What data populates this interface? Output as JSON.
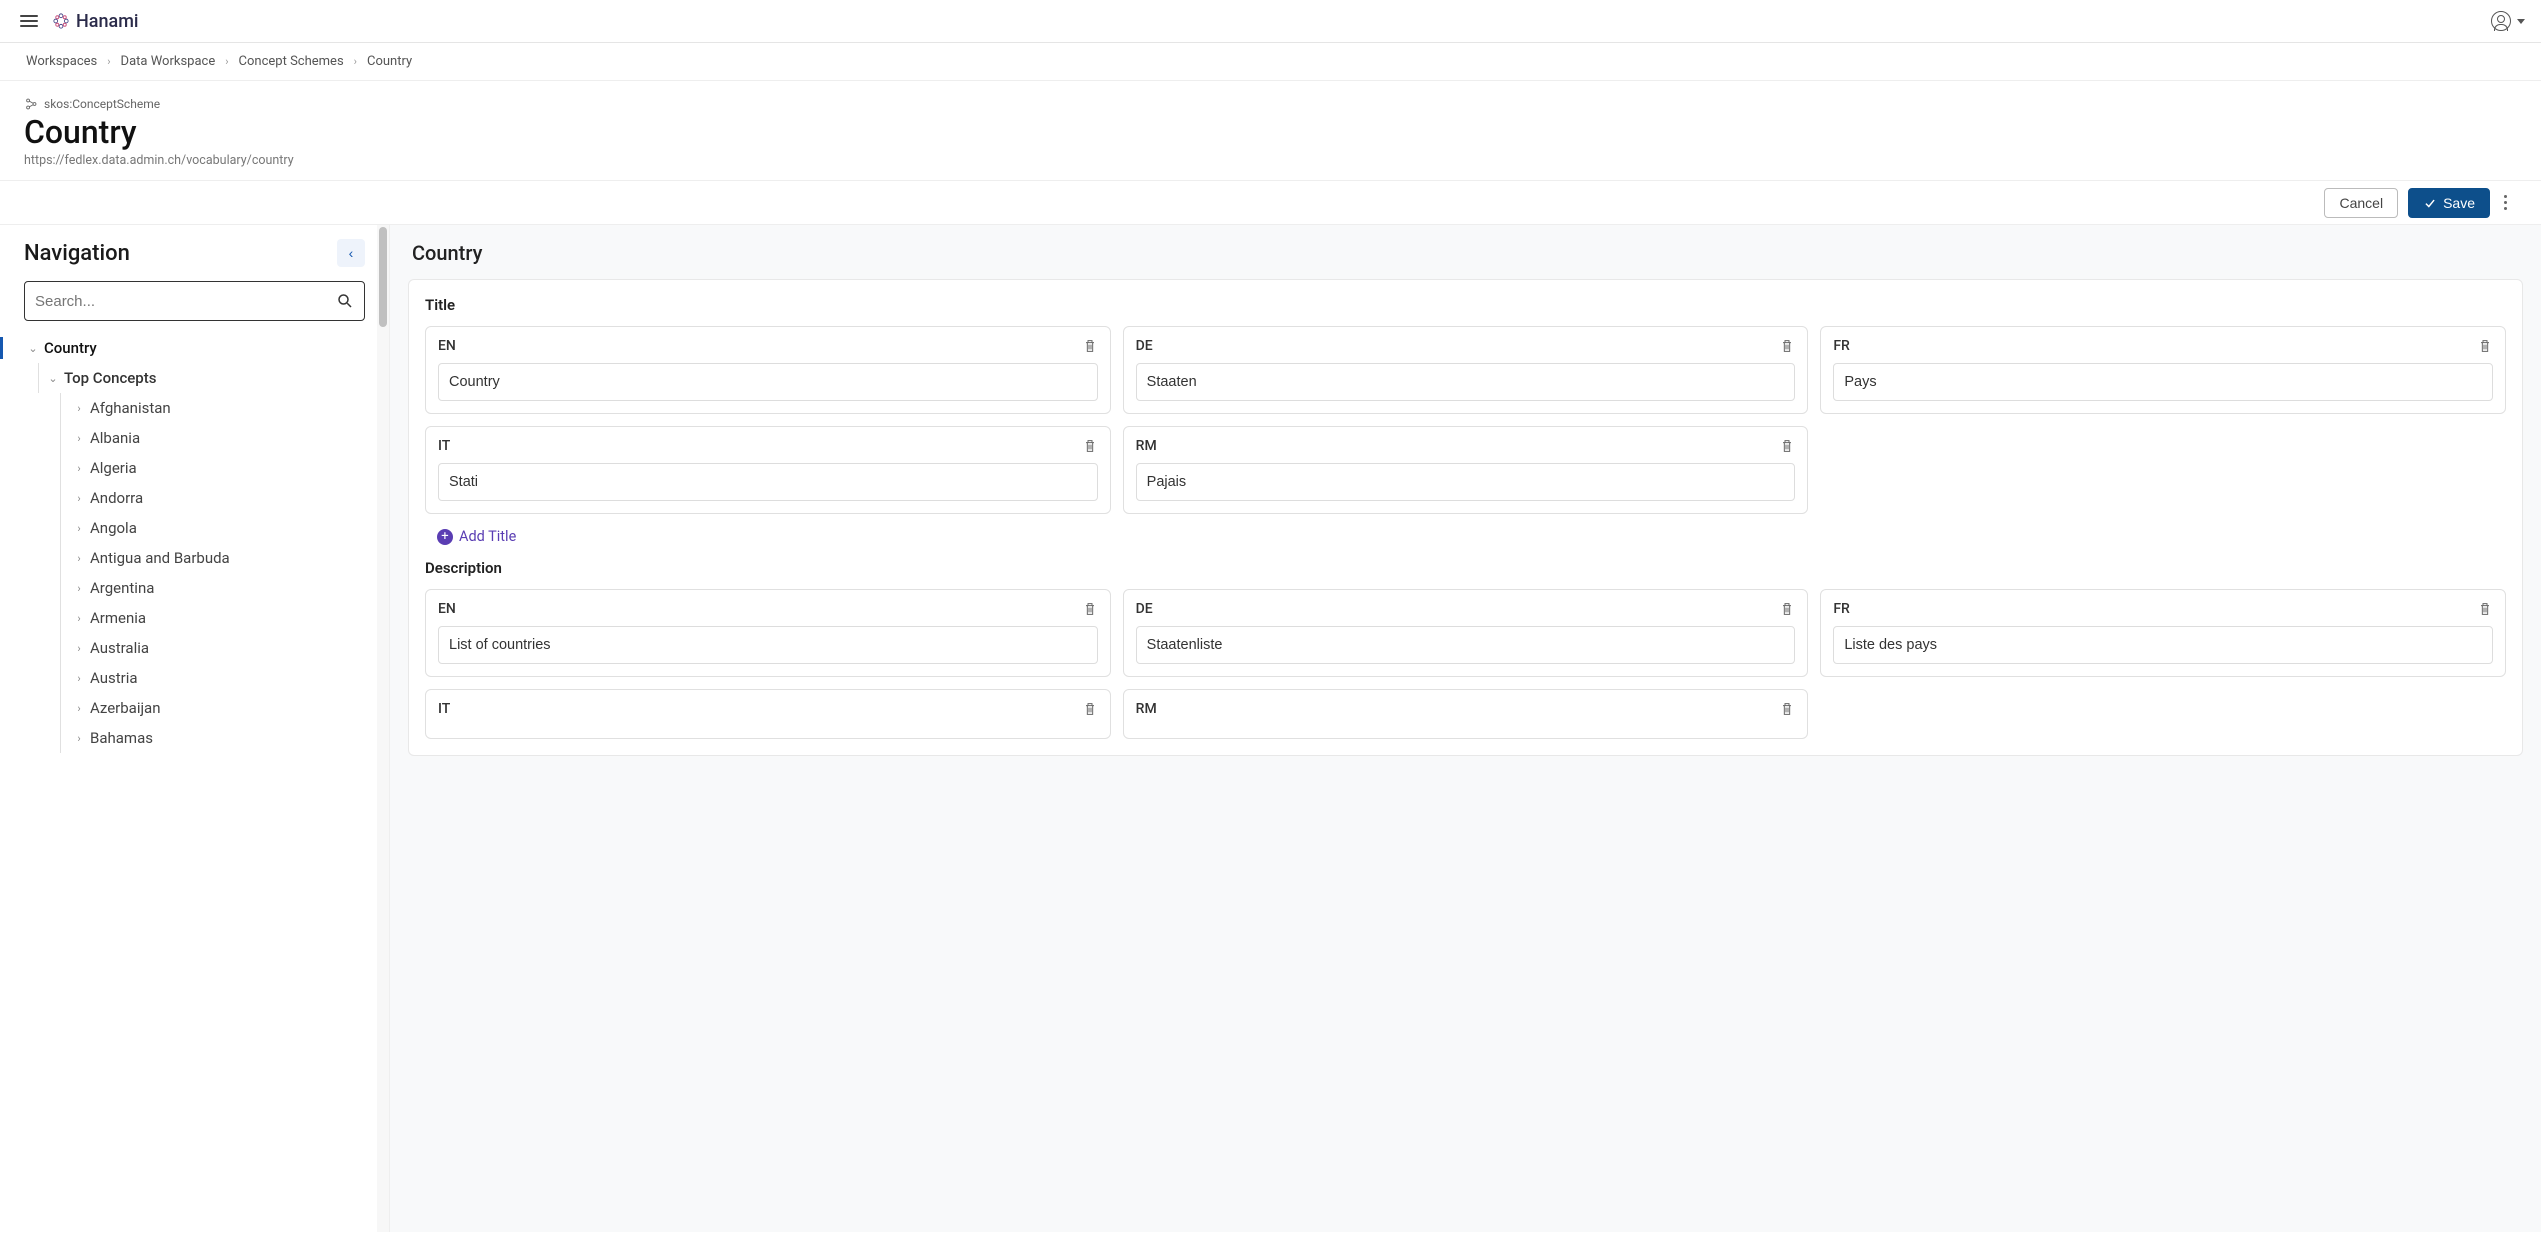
{
  "app": {
    "name": "Hanami"
  },
  "breadcrumbs": [
    {
      "label": "Workspaces"
    },
    {
      "label": "Data Workspace"
    },
    {
      "label": "Concept Schemes"
    },
    {
      "label": "Country"
    }
  ],
  "header": {
    "type_label": "skos:ConceptScheme",
    "title": "Country",
    "url": "https://fedlex.data.admin.ch/vocabulary/country"
  },
  "actions": {
    "cancel": "Cancel",
    "save": "Save"
  },
  "navigation": {
    "title": "Navigation",
    "search_placeholder": "Search...",
    "root": "Country",
    "top_concepts_label": "Top Concepts",
    "countries": [
      "Afghanistan",
      "Albania",
      "Algeria",
      "Andorra",
      "Angola",
      "Antigua and Barbuda",
      "Argentina",
      "Armenia",
      "Australia",
      "Austria",
      "Azerbaijan",
      "Bahamas"
    ]
  },
  "content": {
    "heading": "Country",
    "title_section_label": "Title",
    "description_section_label": "Description",
    "add_title_label": "Add Title",
    "titles_row1": [
      {
        "lang": "EN",
        "value": "Country"
      },
      {
        "lang": "DE",
        "value": "Staaten"
      },
      {
        "lang": "FR",
        "value": "Pays"
      }
    ],
    "titles_row2": [
      {
        "lang": "IT",
        "value": "Stati"
      },
      {
        "lang": "RM",
        "value": "Pajais"
      }
    ],
    "descriptions_row1": [
      {
        "lang": "EN",
        "value": "List of countries"
      },
      {
        "lang": "DE",
        "value": "Staatenliste"
      },
      {
        "lang": "FR",
        "value": "Liste des pays"
      }
    ],
    "descriptions_row2": [
      {
        "lang": "IT",
        "value": ""
      },
      {
        "lang": "RM",
        "value": ""
      }
    ]
  },
  "colors": {
    "primary_button": "#0d4f8b",
    "accent_purple": "#5a3db3",
    "nav_active": "#1558b0",
    "border": "#e0e0e0",
    "bg_content": "#f8f9fa"
  }
}
